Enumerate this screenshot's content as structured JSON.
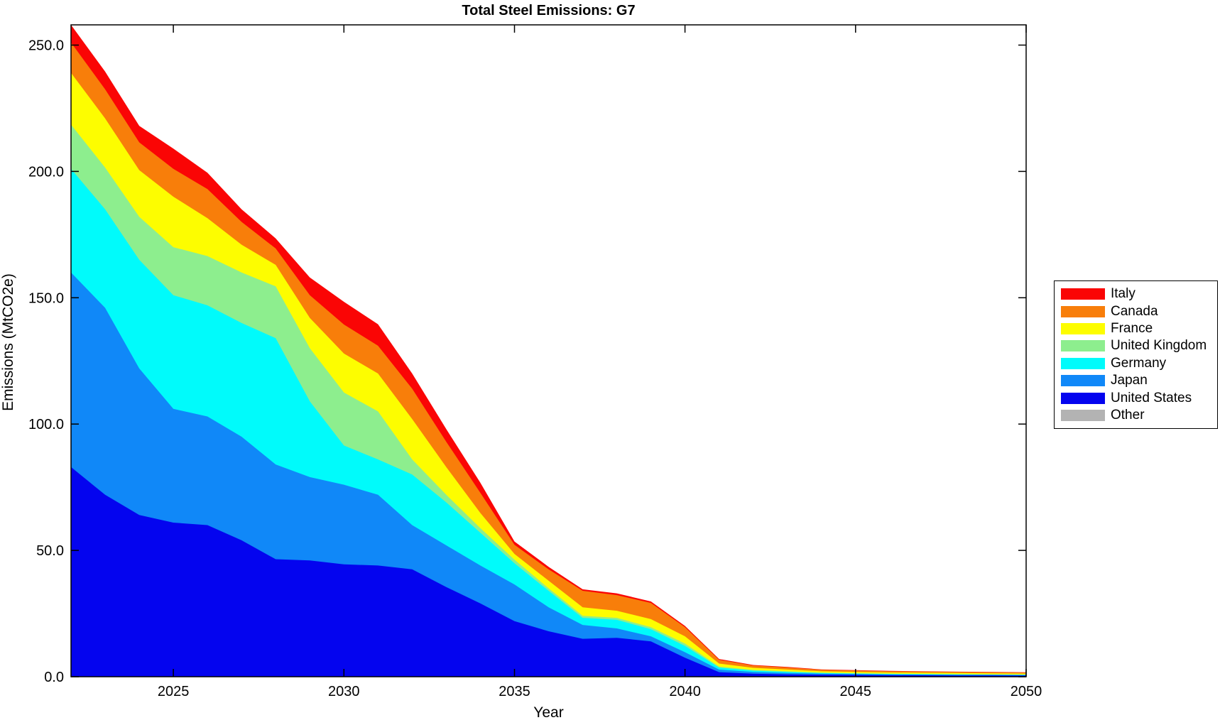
{
  "title": "Total Steel Emissions: G7",
  "axes": {
    "xlabel": "Year",
    "ylabel": "Emissions (MtCO2e)",
    "x_tick_labels": [
      "2025",
      "2030",
      "2035",
      "2040",
      "2045",
      "2050"
    ],
    "y_tick_labels": [
      "0.0",
      "50.0",
      "100.0",
      "150.0",
      "200.0",
      "250.0"
    ]
  },
  "colors": {
    "background": "#ffffff",
    "frame": "#000000",
    "text": "#000000"
  },
  "chart_data": {
    "type": "area",
    "stacked": true,
    "title": "Total Steel Emissions: G7",
    "xlabel": "Year",
    "ylabel": "Emissions (MtCO2e)",
    "xlim": [
      2022,
      2050
    ],
    "ylim": [
      0,
      258
    ],
    "x_ticks": [
      2025,
      2030,
      2035,
      2040,
      2045,
      2050
    ],
    "y_ticks": [
      0,
      50,
      100,
      150,
      200,
      250
    ],
    "grid": false,
    "legend_position": "right-outside",
    "x": [
      2022,
      2023,
      2024,
      2025,
      2026,
      2027,
      2028,
      2029,
      2030,
      2031,
      2032,
      2033,
      2034,
      2035,
      2036,
      2037,
      2038,
      2039,
      2040,
      2041,
      2042,
      2043,
      2044,
      2045,
      2046,
      2047,
      2048,
      2049,
      2050
    ],
    "series": [
      {
        "name": "Other",
        "color": "#b3b3b3",
        "values": [
          0,
          0,
          0,
          0,
          0,
          0,
          0,
          0,
          0,
          0,
          0,
          0,
          0,
          0,
          0,
          0,
          0,
          0,
          0,
          0,
          0,
          0,
          0,
          0,
          0,
          0,
          0,
          0,
          0
        ]
      },
      {
        "name": "United States",
        "color": "#0404ef",
        "values": [
          83,
          72,
          64,
          61,
          60,
          54,
          46.5,
          46,
          44.5,
          44,
          42.5,
          35.5,
          29,
          22,
          18,
          15,
          15.4,
          14,
          7.5,
          1.8,
          1.2,
          0.9,
          0.8,
          0.7,
          0.6,
          0.55,
          0.5,
          0.5,
          0.45
        ]
      },
      {
        "name": "Japan",
        "color": "#1088f8",
        "values": [
          77,
          74,
          58,
          45,
          43,
          41,
          37.5,
          33,
          31.5,
          28,
          17.5,
          16.5,
          15,
          14.5,
          9.5,
          5.5,
          3.7,
          2.0,
          2.2,
          1.0,
          0.7,
          0.6,
          0.4,
          0.35,
          0.3,
          0.3,
          0.25,
          0.25,
          0.2
        ]
      },
      {
        "name": "Germany",
        "color": "#00fbfb",
        "values": [
          41,
          39,
          43,
          45,
          44,
          45,
          50,
          30,
          15.5,
          14,
          20,
          17,
          13,
          8.4,
          6.5,
          2.8,
          3.4,
          2.8,
          2.5,
          0.8,
          0.5,
          0.4,
          0.25,
          0.2,
          0.2,
          0.15,
          0.15,
          0.1,
          0.1
        ]
      },
      {
        "name": "United Kingdom",
        "color": "#8dee8e",
        "values": [
          17.5,
          16.5,
          17,
          19,
          19.5,
          20,
          20.5,
          21,
          21,
          19,
          6,
          3,
          1.8,
          1.4,
          1.0,
          0.8,
          0.8,
          0.8,
          0.9,
          0.4,
          0.3,
          0.25,
          0.15,
          0.15,
          0.1,
          0.1,
          0.1,
          0.1,
          0.1
        ]
      },
      {
        "name": "France",
        "color": "#fdfd00",
        "values": [
          20.5,
          19.5,
          18.5,
          20,
          15,
          11,
          8.5,
          12,
          15.4,
          15,
          16,
          11,
          6,
          2.3,
          3.0,
          3.4,
          2.8,
          3.2,
          2.9,
          1.2,
          0.8,
          0.7,
          0.55,
          0.5,
          0.5,
          0.45,
          0.45,
          0.4,
          0.4
        ]
      },
      {
        "name": "Canada",
        "color": "#f87e0a",
        "values": [
          12,
          11.5,
          11,
          11,
          11.5,
          9,
          6.5,
          9,
          11.5,
          11,
          12,
          10,
          8,
          3.6,
          4.5,
          6.5,
          6.2,
          6.4,
          3.6,
          1.5,
          0.9,
          0.8,
          0.6,
          0.55,
          0.5,
          0.5,
          0.45,
          0.45,
          0.4
        ]
      },
      {
        "name": "Italy",
        "color": "#fa0505",
        "values": [
          7,
          7,
          6.5,
          8,
          6.5,
          5,
          4,
          7,
          9,
          8.5,
          6,
          5,
          4,
          1.3,
          1.0,
          0.6,
          0.7,
          0.6,
          0.5,
          0.3,
          0.25,
          0.2,
          0.15,
          0.15,
          0.1,
          0.1,
          0.1,
          0.1,
          0.1
        ]
      }
    ],
    "legend": [
      {
        "name": "Italy",
        "color": "#fa0505"
      },
      {
        "name": "Canada",
        "color": "#f87e0a"
      },
      {
        "name": "France",
        "color": "#fdfd00"
      },
      {
        "name": "United Kingdom",
        "color": "#8dee8e"
      },
      {
        "name": "Germany",
        "color": "#00fbfb"
      },
      {
        "name": "Japan",
        "color": "#1088f8"
      },
      {
        "name": "United States",
        "color": "#0404ef"
      },
      {
        "name": "Other",
        "color": "#b3b3b3"
      }
    ]
  }
}
